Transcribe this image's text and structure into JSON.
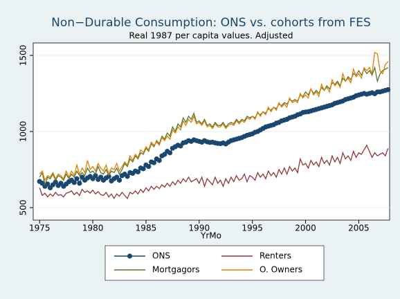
{
  "chart_data": {
    "type": "line",
    "title": "Non−Durable Consumption: ONS vs. cohorts from FES",
    "subtitle": "Real 1987 per capita values. Adjusted",
    "x_label": "YrMo",
    "x": [
      1975,
      1975.25,
      1975.5,
      1975.75,
      1976,
      1976.25,
      1976.5,
      1976.75,
      1977,
      1977.25,
      1977.5,
      1977.75,
      1978,
      1978.25,
      1978.5,
      1978.75,
      1979,
      1979.25,
      1979.5,
      1979.75,
      1980,
      1980.25,
      1980.5,
      1980.75,
      1981,
      1981.25,
      1981.5,
      1981.75,
      1982,
      1982.25,
      1982.5,
      1982.75,
      1983,
      1983.25,
      1983.5,
      1983.75,
      1984,
      1984.25,
      1984.5,
      1984.75,
      1985,
      1985.25,
      1985.5,
      1985.75,
      1986,
      1986.25,
      1986.5,
      1986.75,
      1987,
      1987.25,
      1987.5,
      1987.75,
      1988,
      1988.25,
      1988.5,
      1988.75,
      1989,
      1989.25,
      1989.5,
      1989.75,
      1990,
      1990.25,
      1990.5,
      1990.75,
      1991,
      1991.25,
      1991.5,
      1991.75,
      1992,
      1992.25,
      1992.5,
      1992.75,
      1993,
      1993.25,
      1993.5,
      1993.75,
      1994,
      1994.25,
      1994.5,
      1994.75,
      1995,
      1995.25,
      1995.5,
      1995.75,
      1996,
      1996.25,
      1996.5,
      1996.75,
      1997,
      1997.25,
      1997.5,
      1997.75,
      1998,
      1998.25,
      1998.5,
      1998.75,
      1999,
      1999.25,
      1999.5,
      1999.75,
      2000,
      2000.25,
      2000.5,
      2000.75,
      2001,
      2001.25,
      2001.5,
      2001.75,
      2002,
      2002.25,
      2002.5,
      2002.75,
      2003,
      2003.25,
      2003.5,
      2003.75,
      2004,
      2004.25,
      2004.5,
      2004.75,
      2005,
      2005.25,
      2005.5,
      2005.75,
      2006,
      2006.25,
      2006.5,
      2006.75,
      2007,
      2007.25,
      2007.5,
      2007.75
    ],
    "series": [
      {
        "name": "ONS",
        "color": "#1a476f",
        "marker": true,
        "values": [
          672,
          660,
          640,
          655,
          630,
          650,
          668,
          645,
          660,
          640,
          655,
          670,
          680,
          665,
          690,
          660,
          700,
          680,
          695,
          705,
          690,
          710,
          685,
          700,
          680,
          695,
          705,
          675,
          690,
          700,
          680,
          710,
          720,
          705,
          730,
          725,
          740,
          735,
          760,
          755,
          780,
          770,
          800,
          795,
          820,
          810,
          840,
          850,
          870,
          860,
          890,
          900,
          910,
          905,
          925,
          930,
          940,
          935,
          945,
          940,
          935,
          930,
          940,
          932,
          928,
          930,
          925,
          922,
          920,
          925,
          918,
          930,
          940,
          945,
          950,
          955,
          960,
          968,
          975,
          980,
          985,
          995,
          1000,
          1010,
          1020,
          1030,
          1035,
          1040,
          1045,
          1055,
          1060,
          1070,
          1075,
          1080,
          1090,
          1095,
          1100,
          1110,
          1115,
          1125,
          1128,
          1130,
          1135,
          1140,
          1145,
          1150,
          1155,
          1160,
          1165,
          1170,
          1175,
          1185,
          1190,
          1195,
          1200,
          1210,
          1215,
          1220,
          1225,
          1235,
          1240,
          1245,
          1250,
          1245,
          1250,
          1255,
          1248,
          1260,
          1260,
          1265,
          1270,
          1275
        ]
      },
      {
        "name": "Renters",
        "color": "#90353b",
        "marker": false,
        "values": [
          630,
          580,
          595,
          570,
          590,
          575,
          600,
          580,
          585,
          570,
          595,
          600,
          610,
          585,
          600,
          580,
          620,
          600,
          610,
          595,
          615,
          590,
          605,
          585,
          580,
          600,
          570,
          590,
          560,
          590,
          575,
          600,
          580,
          560,
          600,
          590,
          610,
          590,
          620,
          600,
          630,
          610,
          640,
          620,
          640,
          625,
          650,
          635,
          660,
          640,
          670,
          650,
          680,
          660,
          690,
          670,
          700,
          670,
          680,
          690,
          660,
          700,
          640,
          690,
          670,
          650,
          700,
          660,
          680,
          640,
          690,
          660,
          700,
          670,
          710,
          680,
          690,
          720,
          670,
          710,
          700,
          680,
          730,
          700,
          720,
          690,
          740,
          710,
          730,
          700,
          750,
          720,
          760,
          720,
          770,
          740,
          760,
          730,
          820,
          780,
          790,
          760,
          810,
          780,
          800,
          770,
          830,
          790,
          810,
          780,
          840,
          800,
          830,
          790,
          860,
          820,
          840,
          810,
          870,
          830,
          860,
          850,
          880,
          910,
          870,
          830,
          860,
          840,
          850,
          860,
          840,
          890
        ]
      },
      {
        "name": "Mortgagors",
        "color": "#55752f",
        "marker": false,
        "values": [
          700,
          730,
          650,
          700,
          690,
          720,
          680,
          710,
          700,
          680,
          720,
          690,
          720,
          700,
          740,
          710,
          730,
          710,
          760,
          730,
          740,
          720,
          770,
          730,
          720,
          750,
          710,
          740,
          730,
          760,
          720,
          750,
          790,
          770,
          820,
          800,
          840,
          820,
          860,
          850,
          890,
          870,
          920,
          900,
          940,
          920,
          970,
          950,
          990,
          970,
          1030,
          1000,
          1050,
          1030,
          1090,
          1060,
          1100,
          1080,
          1120,
          1060,
          1070,
          1050,
          1080,
          1040,
          1050,
          1030,
          1060,
          1040,
          1040,
          1060,
          1030,
          1050,
          1060,
          1050,
          1080,
          1060,
          1080,
          1070,
          1100,
          1090,
          1100,
          1090,
          1120,
          1110,
          1130,
          1120,
          1150,
          1140,
          1160,
          1150,
          1180,
          1170,
          1190,
          1180,
          1210,
          1200,
          1210,
          1200,
          1240,
          1230,
          1260,
          1240,
          1280,
          1250,
          1270,
          1250,
          1290,
          1270,
          1300,
          1280,
          1320,
          1310,
          1330,
          1300,
          1350,
          1330,
          1360,
          1340,
          1380,
          1370,
          1400,
          1370,
          1410,
          1380,
          1400,
          1370,
          1420,
          1330,
          1380,
          1400,
          1410,
          1420
        ]
      },
      {
        "name": "O. Owners",
        "color": "#e37e00",
        "marker": false,
        "values": [
          720,
          740,
          680,
          710,
          700,
          730,
          690,
          720,
          710,
          690,
          740,
          700,
          740,
          710,
          780,
          720,
          760,
          730,
          810,
          750,
          770,
          740,
          790,
          760,
          740,
          780,
          720,
          760,
          750,
          790,
          740,
          770,
          800,
          780,
          840,
          810,
          850,
          830,
          880,
          860,
          900,
          880,
          930,
          910,
          930,
          910,
          960,
          940,
          970,
          950,
          1010,
          990,
          1030,
          1010,
          1070,
          1040,
          1080,
          1060,
          1100,
          1050,
          1060,
          1040,
          1070,
          1030,
          1040,
          1020,
          1050,
          1030,
          1030,
          1050,
          1020,
          1040,
          1050,
          1040,
          1070,
          1050,
          1070,
          1060,
          1090,
          1080,
          1100,
          1080,
          1130,
          1100,
          1130,
          1110,
          1160,
          1130,
          1160,
          1140,
          1190,
          1160,
          1180,
          1160,
          1220,
          1190,
          1200,
          1190,
          1250,
          1220,
          1240,
          1220,
          1280,
          1240,
          1260,
          1230,
          1310,
          1270,
          1290,
          1260,
          1340,
          1300,
          1320,
          1290,
          1380,
          1330,
          1350,
          1320,
          1410,
          1360,
          1380,
          1350,
          1420,
          1400,
          1420,
          1380,
          1520,
          1510,
          1400,
          1380,
          1440,
          1460
        ]
      }
    ],
    "xlim": [
      1974.4,
      2007.9
    ],
    "xticks": [
      1975,
      1980,
      1985,
      1990,
      1995,
      2000,
      2005
    ],
    "ylim": [
      418,
      1582
    ],
    "yticks": [
      500,
      1000,
      1500
    ],
    "grid": true,
    "legend": "bottom"
  }
}
